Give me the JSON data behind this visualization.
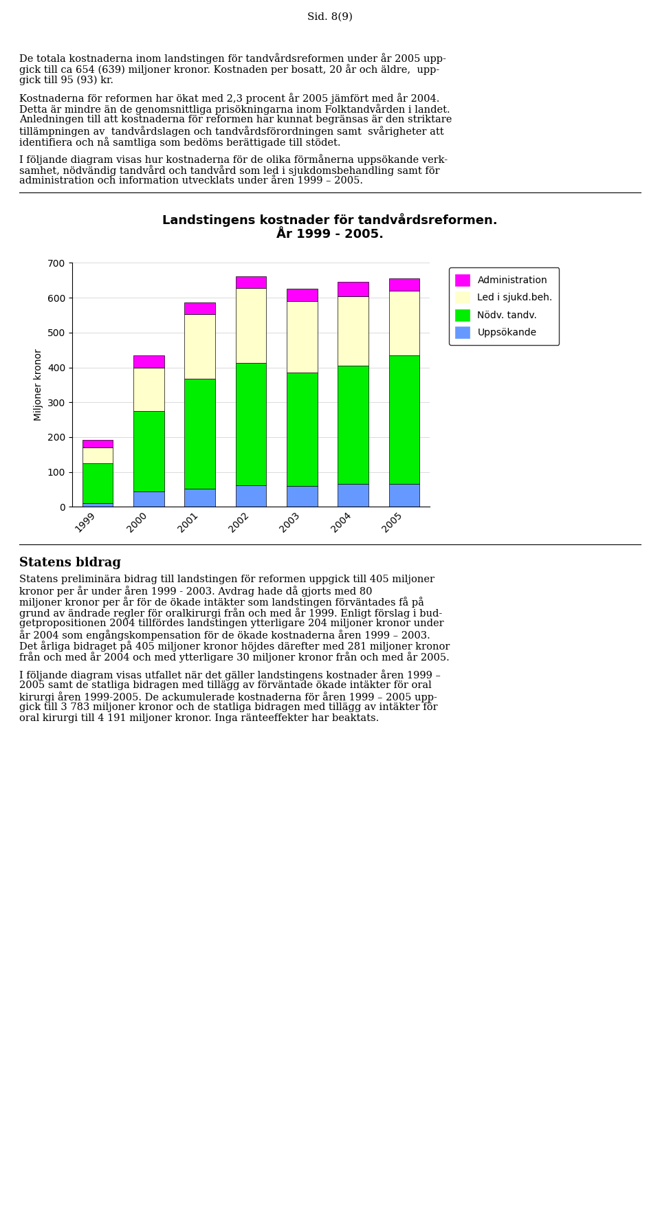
{
  "title_line1": "Landstingens kostnader för tandvårdsreformen.",
  "title_line2": "År 1999 - 2005.",
  "ylabel": "Miljoner kronor",
  "years": [
    "1999",
    "2000",
    "2001",
    "2002",
    "2003",
    "2004",
    "2005"
  ],
  "uppsokande": [
    10,
    45,
    52,
    62,
    60,
    65,
    65
  ],
  "nodv_tandv": [
    115,
    230,
    315,
    350,
    325,
    340,
    370
  ],
  "led_i_sjukd": [
    45,
    125,
    185,
    215,
    205,
    200,
    185
  ],
  "administration": [
    22,
    35,
    35,
    35,
    35,
    40,
    35
  ],
  "color_uppsokande": "#6699ff",
  "color_nodv_tandv": "#00ee00",
  "color_led_i_sjukd": "#ffffcc",
  "color_administration": "#ff00ff",
  "ylim": [
    0,
    700
  ],
  "yticks": [
    0,
    100,
    200,
    300,
    400,
    500,
    600,
    700
  ],
  "legend_labels": [
    "Administration",
    "Led i sjukd.beh.",
    "Nödv. tandv.",
    "Uppsökande"
  ],
  "page_header": "Sid. 8(9)",
  "text_lines": [
    "",
    "",
    "De totala kostnaderna inom landstingen för tandvårdsreformen under år 2005 upp-",
    "gick till ca 654 (639) miljoner kronor. Kostnaden per bosatt, 20 år och äldre,  upp-",
    "gick till 95 (93) kr.",
    "",
    "Kostnaderna för reformen har ökat med 2,3 procent år 2005 jämfört med år 2004.",
    "Detta är mindre än de genomsnittliga prisökningarna inom Folktandvården i landet.",
    "Anledningen till att kostnaderna för reformen har kunnat begränsas är den striktare",
    "tillämpningen av  tandvårdslagen och tandvårdsförordningen samt  svårigheter att",
    "identifiera och nå samtliga som bedöms berättigade till stödet.",
    "",
    "I följande diagram visas hur kostnaderna för de olika förmånerna uppsökande verk-",
    "samhet, nödvändig tandvård och tandvård som led i sjukdomsbehandling samt för",
    "administration och information utvecklats under åren 1999 – 2005."
  ],
  "section_header": "Statens bidrag",
  "para4_lines": [
    "Statens preliminära bidrag till landstingen för reformen uppgick till 405 miljoner",
    "kronor per år under åren 1999 - 2003. Avdrag hade då gjorts med 80",
    "miljoner kronor per år för de ökade intäkter som landstingen förväntades få på",
    "grund av ändrade regler för oralkirurgi från och med år 1999. Enligt förslag i bud-",
    "getpropositionen 2004 tillfördes landstingen ytterligare 204 miljoner kronor under",
    "år 2004 som engångskompensation för de ökade kostnaderna åren 1999 – 2003.",
    "Det årliga bidraget på 405 miljoner kronor höjdes därefter med 281 miljoner kronor",
    "från och med år 2004 och med ytterligare 30 miljoner kronor från och med år 2005."
  ],
  "para5_lines": [
    "I följande diagram visas utfallet när det gäller landstingens kostnader åren 1999 –",
    "2005 samt de statliga bidragen med tillägg av förväntade ökade intäkter för oral",
    "kirurgi åren 1999-2005. De ackumulerade kostnaderna för åren 1999 – 2005 upp-",
    "gick till 3 783 miljoner kronor och de statliga bidragen med tillägg av intäkter för",
    "oral kirurgi till 4 191 miljoner kronor. Inga ränteeffekter har beaktats."
  ]
}
